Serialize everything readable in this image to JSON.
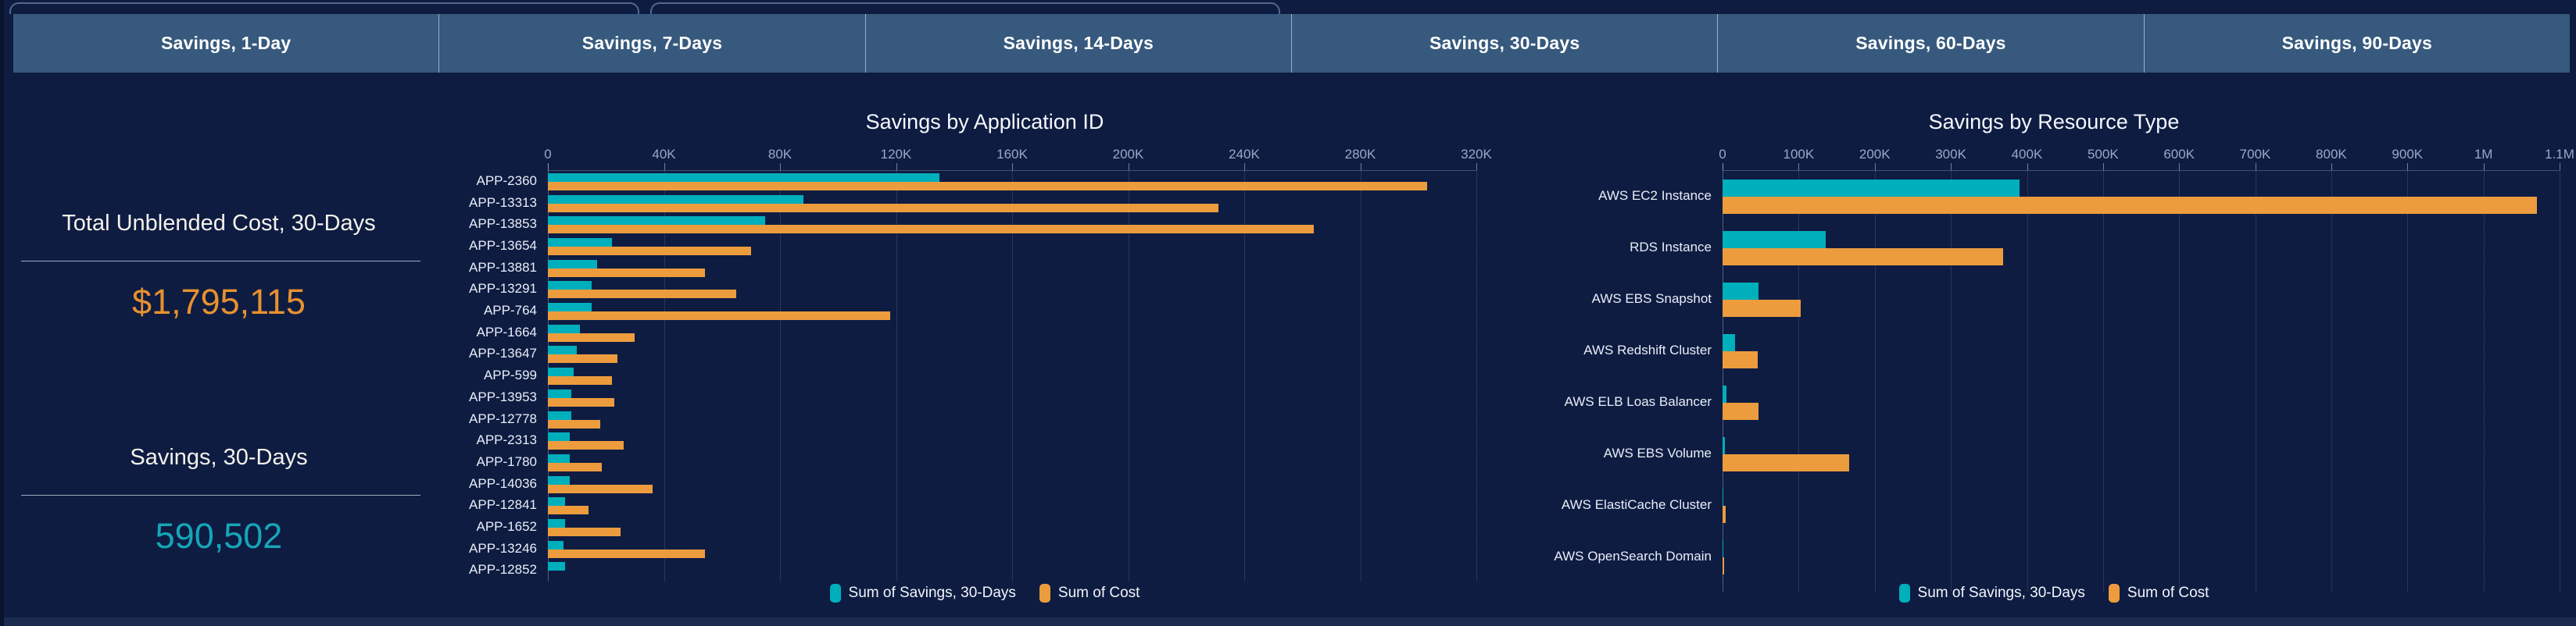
{
  "nav_tabs": [
    {
      "label": "Savings, 1-Day"
    },
    {
      "label": "Savings, 7-Days"
    },
    {
      "label": "Savings, 14-Days"
    },
    {
      "label": "Savings, 30-Days"
    },
    {
      "label": "Savings, 60-Days"
    },
    {
      "label": "Savings, 90-Days"
    }
  ],
  "kpis": [
    {
      "title": "Total Unblended Cost, 30-Days",
      "value": "$1,795,115",
      "value_color": "#E8912F"
    },
    {
      "title": "Savings, 30-Days",
      "value": "590,502",
      "value_color": "#16A6B8"
    }
  ],
  "colors": {
    "background": "#0E1C42",
    "tab_bar": "#36597D",
    "bottom_strip": "#1B2A50",
    "savings_teal": "#00AFBC",
    "cost_orange": "#EC9C3D"
  },
  "chart_data": [
    {
      "type": "bar",
      "orientation": "horizontal",
      "title": "Savings by Application ID",
      "categories": [
        "APP-2360",
        "APP-13313",
        "APP-13853",
        "APP-13654",
        "APP-13881",
        "APP-13291",
        "APP-764",
        "APP-1664",
        "APP-13647",
        "APP-599",
        "APP-13953",
        "APP-12778",
        "APP-2313",
        "APP-1780",
        "APP-14036",
        "APP-12841",
        "APP-1652",
        "APP-13246",
        "APP-12852"
      ],
      "series": [
        {
          "name": "Sum of Savings, 30-Days",
          "color": "#00AFBC",
          "values": [
            135000,
            88000,
            75000,
            22000,
            17000,
            15000,
            15000,
            11000,
            10000,
            9000,
            8000,
            8000,
            7500,
            7500,
            7500,
            6000,
            6000,
            5500,
            6000
          ]
        },
        {
          "name": "Sum of Cost",
          "color": "#EC9C3D",
          "values": [
            303000,
            231000,
            264000,
            70000,
            54000,
            65000,
            118000,
            30000,
            24000,
            22000,
            23000,
            18000,
            26000,
            18500,
            36000,
            14000,
            25000,
            54000,
            null
          ]
        }
      ],
      "x_axis": {
        "min": 0,
        "max": 320000,
        "position": "top",
        "tick_labels": [
          "0",
          "40K",
          "80K",
          "120K",
          "160K",
          "200K",
          "240K",
          "280K",
          "320K"
        ]
      },
      "grid": true,
      "legend": {
        "position": "bottom",
        "entries": [
          "Sum of Savings, 30-Days",
          "Sum of Cost"
        ]
      }
    },
    {
      "type": "bar",
      "orientation": "horizontal",
      "title": "Savings by Resource Type",
      "categories": [
        "AWS EC2 Instance",
        "RDS Instance",
        "AWS EBS Snapshot",
        "AWS Redshift Cluster",
        "AWS ELB Loas Balancer",
        "AWS EBS Volume",
        "AWS ElastiCache Cluster",
        "AWS OpenSearch Domain"
      ],
      "series": [
        {
          "name": "Sum of Savings, 30-Days",
          "color": "#00AFBC",
          "values": [
            390000,
            136000,
            47000,
            16000,
            5000,
            3000,
            800,
            400
          ]
        },
        {
          "name": "Sum of Cost",
          "color": "#EC9C3D",
          "values": [
            1070000,
            369000,
            103000,
            46000,
            47000,
            166000,
            4000,
            2500
          ]
        }
      ],
      "x_axis": {
        "min": 0,
        "max": 1100000,
        "position": "top",
        "tick_labels": [
          "0",
          "100K",
          "200K",
          "300K",
          "400K",
          "500K",
          "600K",
          "700K",
          "800K",
          "900K",
          "1M",
          "1.1M"
        ]
      },
      "grid": true,
      "legend": {
        "position": "bottom",
        "entries": [
          "Sum of Savings, 30-Days",
          "Sum of Cost"
        ]
      }
    }
  ]
}
